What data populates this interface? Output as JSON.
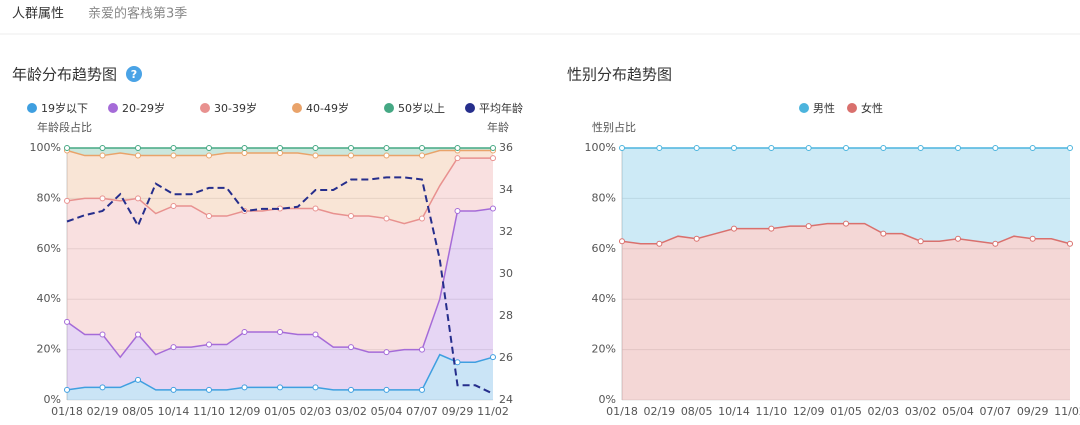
{
  "tabs": [
    "人群属性",
    "亲爱的客栈第3季"
  ],
  "chart_data": [
    {
      "type": "stacked_area",
      "title": "年龄分布趋势图",
      "ylabel": "年龄段占比",
      "y2label": "年龄",
      "categories": [
        "01/18",
        null,
        "02/19",
        null,
        "08/05",
        null,
        "10/14",
        null,
        "11/10",
        null,
        "12/09",
        null,
        "01/05",
        null,
        "02/03",
        null,
        "03/02",
        null,
        "05/04",
        null,
        "07/07",
        null,
        "09/29",
        null,
        "11/02"
      ],
      "ylim": [
        0,
        100
      ],
      "yticks": [
        {
          "value": 0,
          "label": "0%"
        },
        {
          "value": 20,
          "label": "20%"
        },
        {
          "value": 40,
          "label": "40%"
        },
        {
          "value": 60,
          "label": "60%"
        },
        {
          "value": 80,
          "label": "80%"
        },
        {
          "value": 100,
          "label": "100%"
        }
      ],
      "y2lim": [
        24,
        36
      ],
      "y2ticks": [
        24,
        26,
        28,
        30,
        32,
        34,
        36
      ],
      "grid": true,
      "series": [
        {
          "name": "19岁以下",
          "color": "#3f9fe0",
          "values": [
            4,
            5,
            5,
            5,
            8,
            4,
            4,
            4,
            4,
            4,
            5,
            5,
            5,
            5,
            5,
            4,
            4,
            4,
            4,
            4,
            4,
            18,
            15,
            15,
            17
          ]
        },
        {
          "name": "20-29岁",
          "color": "#a56bd8",
          "values": [
            27,
            21,
            21,
            12,
            18,
            14,
            17,
            17,
            18,
            18,
            22,
            22,
            22,
            21,
            21,
            17,
            17,
            15,
            15,
            16,
            16,
            22,
            60,
            60,
            59
          ]
        },
        {
          "name": "30-39岁",
          "color": "#e8918f",
          "values": [
            48,
            54,
            54,
            62,
            54,
            56,
            56,
            56,
            51,
            51,
            48,
            48,
            49,
            50,
            50,
            53,
            52,
            54,
            53,
            50,
            52,
            45,
            21,
            21,
            20
          ]
        },
        {
          "name": "40-49岁",
          "color": "#e9a36a",
          "values": [
            20,
            17,
            17,
            19,
            17,
            23,
            20,
            20,
            24,
            25,
            23,
            23,
            22,
            22,
            21,
            23,
            24,
            24,
            25,
            27,
            25,
            14,
            3,
            3,
            3
          ]
        },
        {
          "name": "50岁以上",
          "color": "#45a884",
          "values": [
            1,
            3,
            3,
            2,
            3,
            3,
            3,
            3,
            3,
            2,
            2,
            2,
            2,
            2,
            3,
            3,
            3,
            3,
            3,
            3,
            3,
            1,
            1,
            1,
            1
          ]
        },
        {
          "name": "平均年龄",
          "color": "#262e8c",
          "axis": "y2",
          "dashed": true,
          "values": [
            32.5,
            32.8,
            33,
            33.8,
            32.3,
            34.3,
            33.8,
            33.8,
            34.1,
            34.1,
            33,
            33.1,
            33.1,
            33.2,
            34,
            34,
            34.5,
            34.5,
            34.6,
            34.6,
            34.5,
            30.7,
            24.7,
            24.7,
            24.3
          ]
        }
      ]
    },
    {
      "type": "stacked_area",
      "title": "性别分布趋势图",
      "ylabel": "性别占比",
      "stack_reverse": true,
      "categories": [
        "01/18",
        null,
        "02/19",
        null,
        "08/05",
        null,
        "10/14",
        null,
        "11/10",
        null,
        "12/09",
        null,
        "01/05",
        null,
        "02/03",
        null,
        "03/02",
        null,
        "05/04",
        null,
        "07/07",
        null,
        "09/29",
        null,
        "11/02"
      ],
      "ylim": [
        0,
        100
      ],
      "yticks": [
        {
          "value": 0,
          "label": "0%"
        },
        {
          "value": 20,
          "label": "20%"
        },
        {
          "value": 40,
          "label": "40%"
        },
        {
          "value": 60,
          "label": "60%"
        },
        {
          "value": 80,
          "label": "80%"
        },
        {
          "value": 100,
          "label": "100%"
        }
      ],
      "grid": true,
      "series": [
        {
          "name": "男性",
          "color": "#4cb4dd",
          "values": [
            37,
            38,
            38,
            35,
            36,
            34,
            32,
            32,
            32,
            31,
            31,
            30,
            30,
            30,
            34,
            34,
            37,
            37,
            36,
            37,
            38,
            35,
            36,
            36,
            38
          ]
        },
        {
          "name": "女性",
          "color": "#d9706d",
          "values": [
            63,
            62,
            62,
            65,
            64,
            66,
            68,
            68,
            68,
            69,
            69,
            70,
            70,
            70,
            66,
            66,
            63,
            63,
            64,
            63,
            62,
            65,
            64,
            64,
            62
          ]
        }
      ]
    }
  ]
}
